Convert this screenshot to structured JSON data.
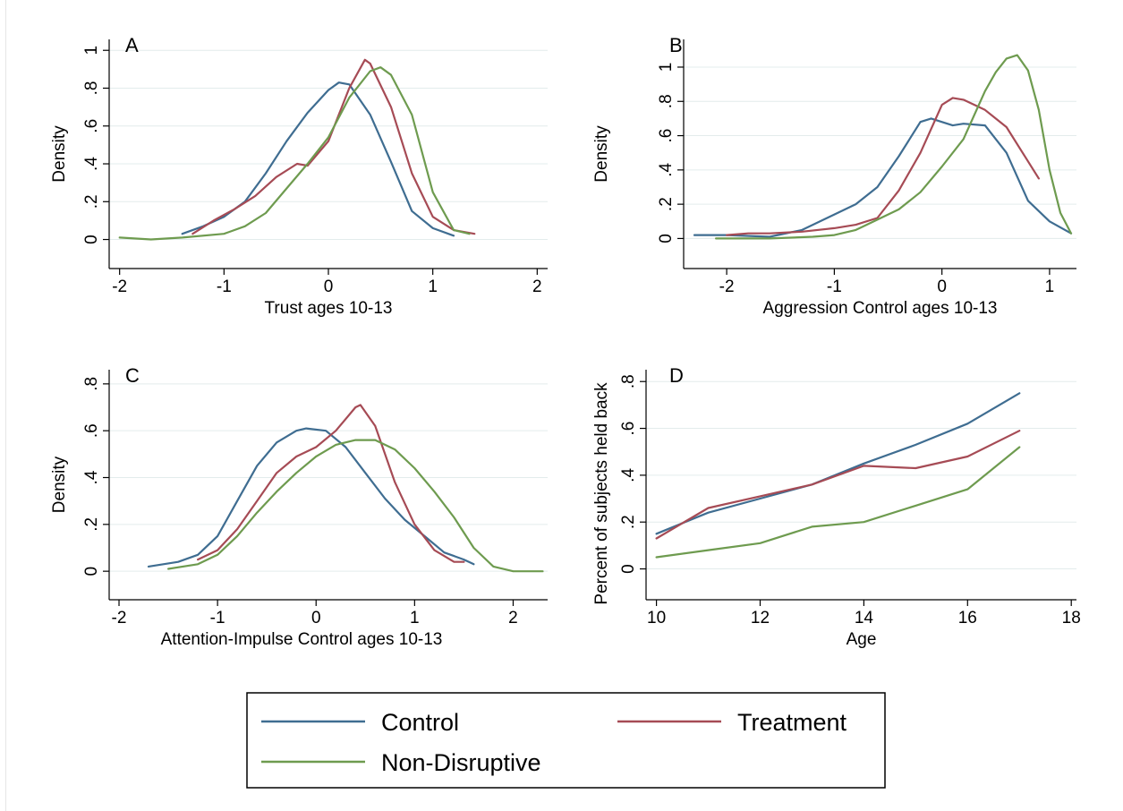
{
  "accent_colors": {
    "control": "#3f6d91",
    "treatment": "#a64b55",
    "non_disruptive": "#6e9b4f"
  },
  "legend": {
    "items": [
      {
        "key": "control",
        "label": "Control"
      },
      {
        "key": "treatment",
        "label": "Treatment"
      },
      {
        "key": "non_disruptive",
        "label": "Non-Disruptive"
      }
    ]
  },
  "chart_data": [
    {
      "type": "line",
      "panel_label": "A",
      "xlabel": "Trust ages 10-13",
      "ylabel": "Density",
      "xlim": [
        -2.1,
        2.1
      ],
      "ylim": [
        -0.04,
        1.02
      ],
      "x_ticks": [
        -2,
        -1,
        0,
        1,
        2
      ],
      "x_tick_labels": [
        "-2",
        "-1",
        "0",
        "1",
        "2"
      ],
      "y_ticks": [
        0,
        0.2,
        0.4,
        0.6,
        0.8,
        1
      ],
      "y_tick_labels": [
        "0",
        ".2",
        ".4",
        ".6",
        ".8",
        "1"
      ],
      "grid": true,
      "series": [
        {
          "key": "control",
          "name": "Control",
          "x": [
            -1.4,
            -1.2,
            -1.0,
            -0.8,
            -0.6,
            -0.4,
            -0.2,
            0.0,
            0.1,
            0.2,
            0.4,
            0.6,
            0.8,
            1.0,
            1.2
          ],
          "y": [
            0.03,
            0.07,
            0.12,
            0.2,
            0.35,
            0.52,
            0.67,
            0.79,
            0.83,
            0.82,
            0.66,
            0.41,
            0.15,
            0.06,
            0.02
          ]
        },
        {
          "key": "treatment",
          "name": "Treatment",
          "x": [
            -1.3,
            -1.1,
            -0.9,
            -0.7,
            -0.5,
            -0.3,
            -0.2,
            0.0,
            0.2,
            0.35,
            0.4,
            0.6,
            0.8,
            1.0,
            1.2,
            1.4
          ],
          "y": [
            0.03,
            0.1,
            0.16,
            0.23,
            0.33,
            0.4,
            0.39,
            0.52,
            0.8,
            0.95,
            0.93,
            0.7,
            0.35,
            0.12,
            0.05,
            0.03
          ]
        },
        {
          "key": "non_disruptive",
          "name": "Non-Disruptive",
          "x": [
            -2.0,
            -1.7,
            -1.4,
            -1.0,
            -0.8,
            -0.6,
            -0.4,
            -0.2,
            0.0,
            0.2,
            0.4,
            0.5,
            0.6,
            0.8,
            1.0,
            1.2,
            1.35
          ],
          "y": [
            0.01,
            0.0,
            0.01,
            0.03,
            0.07,
            0.14,
            0.27,
            0.4,
            0.54,
            0.75,
            0.89,
            0.91,
            0.87,
            0.66,
            0.25,
            0.05,
            0.03
          ]
        }
      ]
    },
    {
      "type": "line",
      "panel_label": "B",
      "xlabel": "Aggression Control  ages 10-13",
      "ylabel": "Density",
      "xlim": [
        -2.4,
        1.25
      ],
      "ylim": [
        -0.05,
        1.12
      ],
      "x_ticks": [
        -2,
        -1,
        0,
        1
      ],
      "x_tick_labels": [
        "-2",
        "-1",
        "0",
        "1"
      ],
      "y_ticks": [
        0,
        0.2,
        0.4,
        0.6,
        0.8,
        1
      ],
      "y_tick_labels": [
        "0",
        ".2",
        ".4",
        ".6",
        ".8",
        "1"
      ],
      "grid": true,
      "series": [
        {
          "key": "control",
          "name": "Control",
          "x": [
            -2.3,
            -2.0,
            -1.6,
            -1.3,
            -1.0,
            -0.8,
            -0.6,
            -0.4,
            -0.2,
            -0.1,
            0.1,
            0.2,
            0.4,
            0.6,
            0.8,
            1.0,
            1.2
          ],
          "y": [
            0.02,
            0.02,
            0.01,
            0.05,
            0.14,
            0.2,
            0.3,
            0.48,
            0.68,
            0.7,
            0.66,
            0.67,
            0.66,
            0.5,
            0.22,
            0.1,
            0.03
          ]
        },
        {
          "key": "treatment",
          "name": "Treatment",
          "x": [
            -2.0,
            -1.8,
            -1.6,
            -1.3,
            -1.0,
            -0.8,
            -0.6,
            -0.4,
            -0.2,
            0.0,
            0.1,
            0.2,
            0.4,
            0.6,
            0.8,
            0.9
          ],
          "y": [
            0.02,
            0.03,
            0.03,
            0.04,
            0.06,
            0.08,
            0.12,
            0.28,
            0.5,
            0.78,
            0.82,
            0.81,
            0.75,
            0.65,
            0.45,
            0.35
          ]
        },
        {
          "key": "non_disruptive",
          "name": "Non-Disruptive",
          "x": [
            -2.1,
            -1.6,
            -1.2,
            -1.0,
            -0.8,
            -0.6,
            -0.4,
            -0.2,
            0.0,
            0.2,
            0.4,
            0.5,
            0.6,
            0.7,
            0.8,
            0.9,
            1.0,
            1.1,
            1.2
          ],
          "y": [
            0.0,
            0.0,
            0.01,
            0.02,
            0.05,
            0.11,
            0.17,
            0.27,
            0.42,
            0.58,
            0.86,
            0.97,
            1.05,
            1.07,
            0.98,
            0.75,
            0.4,
            0.15,
            0.03
          ]
        }
      ]
    },
    {
      "type": "line",
      "panel_label": "C",
      "xlabel": "Attention-Impulse Control ages 10-13",
      "ylabel": "Density",
      "xlim": [
        -2.1,
        2.35
      ],
      "ylim": [
        -0.03,
        0.83
      ],
      "x_ticks": [
        -2,
        -1,
        0,
        1,
        2
      ],
      "x_tick_labels": [
        "-2",
        "-1",
        "0",
        "1",
        "2"
      ],
      "y_ticks": [
        0,
        0.2,
        0.4,
        0.6,
        0.8
      ],
      "y_tick_labels": [
        "0",
        ".2",
        ".4",
        ".6",
        ".8"
      ],
      "grid": true,
      "series": [
        {
          "key": "control",
          "name": "Control",
          "x": [
            -1.7,
            -1.4,
            -1.2,
            -1.0,
            -0.8,
            -0.6,
            -0.4,
            -0.2,
            -0.1,
            0.1,
            0.3,
            0.5,
            0.7,
            0.9,
            1.1,
            1.3,
            1.5,
            1.6
          ],
          "y": [
            0.02,
            0.04,
            0.07,
            0.15,
            0.3,
            0.45,
            0.55,
            0.6,
            0.61,
            0.6,
            0.53,
            0.42,
            0.31,
            0.22,
            0.15,
            0.08,
            0.05,
            0.03
          ]
        },
        {
          "key": "treatment",
          "name": "Treatment",
          "x": [
            -1.2,
            -1.0,
            -0.8,
            -0.6,
            -0.4,
            -0.2,
            0.0,
            0.2,
            0.4,
            0.45,
            0.6,
            0.8,
            1.0,
            1.2,
            1.4,
            1.5
          ],
          "y": [
            0.05,
            0.09,
            0.18,
            0.3,
            0.42,
            0.49,
            0.53,
            0.6,
            0.7,
            0.71,
            0.62,
            0.38,
            0.2,
            0.09,
            0.04,
            0.04
          ]
        },
        {
          "key": "non_disruptive",
          "name": "Non-Disruptive",
          "x": [
            -1.5,
            -1.2,
            -1.0,
            -0.8,
            -0.6,
            -0.4,
            -0.2,
            0.0,
            0.2,
            0.4,
            0.6,
            0.8,
            1.0,
            1.2,
            1.4,
            1.6,
            1.8,
            2.0,
            2.3
          ],
          "y": [
            0.01,
            0.03,
            0.07,
            0.15,
            0.25,
            0.34,
            0.42,
            0.49,
            0.54,
            0.56,
            0.56,
            0.52,
            0.44,
            0.34,
            0.23,
            0.1,
            0.02,
            0.0,
            0.0
          ]
        }
      ]
    },
    {
      "type": "line",
      "panel_label": "D",
      "xlabel": "Age",
      "ylabel": "Percent of subjects held back",
      "xlim": [
        9.8,
        18.1
      ],
      "ylim": [
        -0.04,
        0.82
      ],
      "x_ticks": [
        10,
        12,
        14,
        16,
        18
      ],
      "x_tick_labels": [
        "10",
        "12",
        "14",
        "16",
        "18"
      ],
      "y_ticks": [
        0,
        0.2,
        0.4,
        0.6,
        0.8
      ],
      "y_tick_labels": [
        "0",
        ".2",
        ".4",
        ".6",
        ".8"
      ],
      "grid": true,
      "series": [
        {
          "key": "control",
          "name": "Control",
          "x": [
            10,
            11,
            12,
            13,
            14,
            15,
            16,
            17
          ],
          "y": [
            0.15,
            0.24,
            0.3,
            0.36,
            0.45,
            0.53,
            0.62,
            0.75
          ]
        },
        {
          "key": "treatment",
          "name": "Treatment",
          "x": [
            10,
            11,
            12,
            13,
            14,
            15,
            16,
            17
          ],
          "y": [
            0.13,
            0.26,
            0.31,
            0.36,
            0.44,
            0.43,
            0.48,
            0.59
          ]
        },
        {
          "key": "non_disruptive",
          "name": "Non-Disruptive",
          "x": [
            10,
            11,
            12,
            13,
            14,
            15,
            16,
            17
          ],
          "y": [
            0.05,
            0.08,
            0.11,
            0.18,
            0.2,
            0.27,
            0.34,
            0.52
          ]
        }
      ]
    }
  ]
}
